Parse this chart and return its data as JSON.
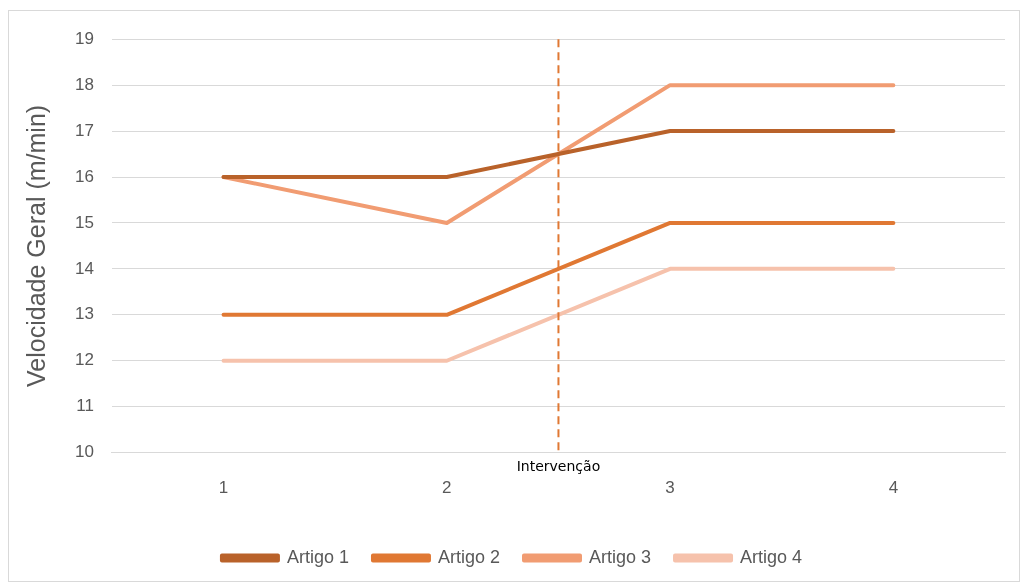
{
  "chart_data": {
    "type": "line",
    "ylabel": "Velocidade Geral (m/min)",
    "x": [
      1,
      2,
      3,
      4
    ],
    "xlim": [
      0.5,
      4.5
    ],
    "xticks": [
      1,
      2,
      3,
      4
    ],
    "ylim": [
      10,
      19
    ],
    "yticks": [
      10,
      11,
      12,
      13,
      14,
      15,
      16,
      17,
      18,
      19
    ],
    "series": [
      {
        "name": "Artigo 1",
        "color": "#b9622a",
        "values": [
          16,
          16,
          17,
          17
        ]
      },
      {
        "name": "Artigo 2",
        "color": "#e07833",
        "values": [
          13,
          13,
          15,
          15
        ]
      },
      {
        "name": "Artigo 3",
        "color": "#f19c72",
        "values": [
          16,
          15,
          18,
          18
        ]
      },
      {
        "name": "Artigo 4",
        "color": "#f6c2ac",
        "values": [
          12,
          12,
          14,
          14
        ]
      }
    ],
    "ref_lines": [
      {
        "axis": "x",
        "value": 2.5,
        "label": "Intervenção",
        "color": "#e07833",
        "line_style": "dashed"
      }
    ],
    "grid": "y",
    "legend": "bottom",
    "marker": "none",
    "line_style": "solid"
  }
}
